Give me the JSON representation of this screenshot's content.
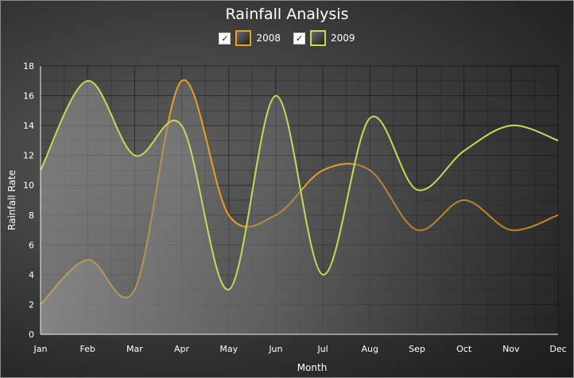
{
  "chart_data": {
    "type": "area",
    "title": "Rainfall Analysis",
    "xlabel": "Month",
    "ylabel": "Rainfall Rate",
    "categories": [
      "Jan",
      "Feb",
      "Mar",
      "Apr",
      "May",
      "Jun",
      "Jul",
      "Aug",
      "Sep",
      "Oct",
      "Nov",
      "Dec"
    ],
    "ylim": [
      0,
      18
    ],
    "yticks": [
      0,
      2,
      4,
      6,
      8,
      10,
      12,
      14,
      16,
      18
    ],
    "grid": true,
    "legend_position": "top-center",
    "series": [
      {
        "name": "2008",
        "color": "#e8a020",
        "checked": true,
        "values": [
          2,
          5,
          3,
          17,
          8,
          8,
          11,
          11,
          7,
          9,
          7,
          8
        ]
      },
      {
        "name": "2009",
        "color": "#c8d858",
        "checked": true,
        "values": [
          11,
          17,
          12,
          14,
          3,
          16,
          4,
          14.5,
          9.7,
          12.3,
          14,
          13
        ]
      }
    ]
  }
}
